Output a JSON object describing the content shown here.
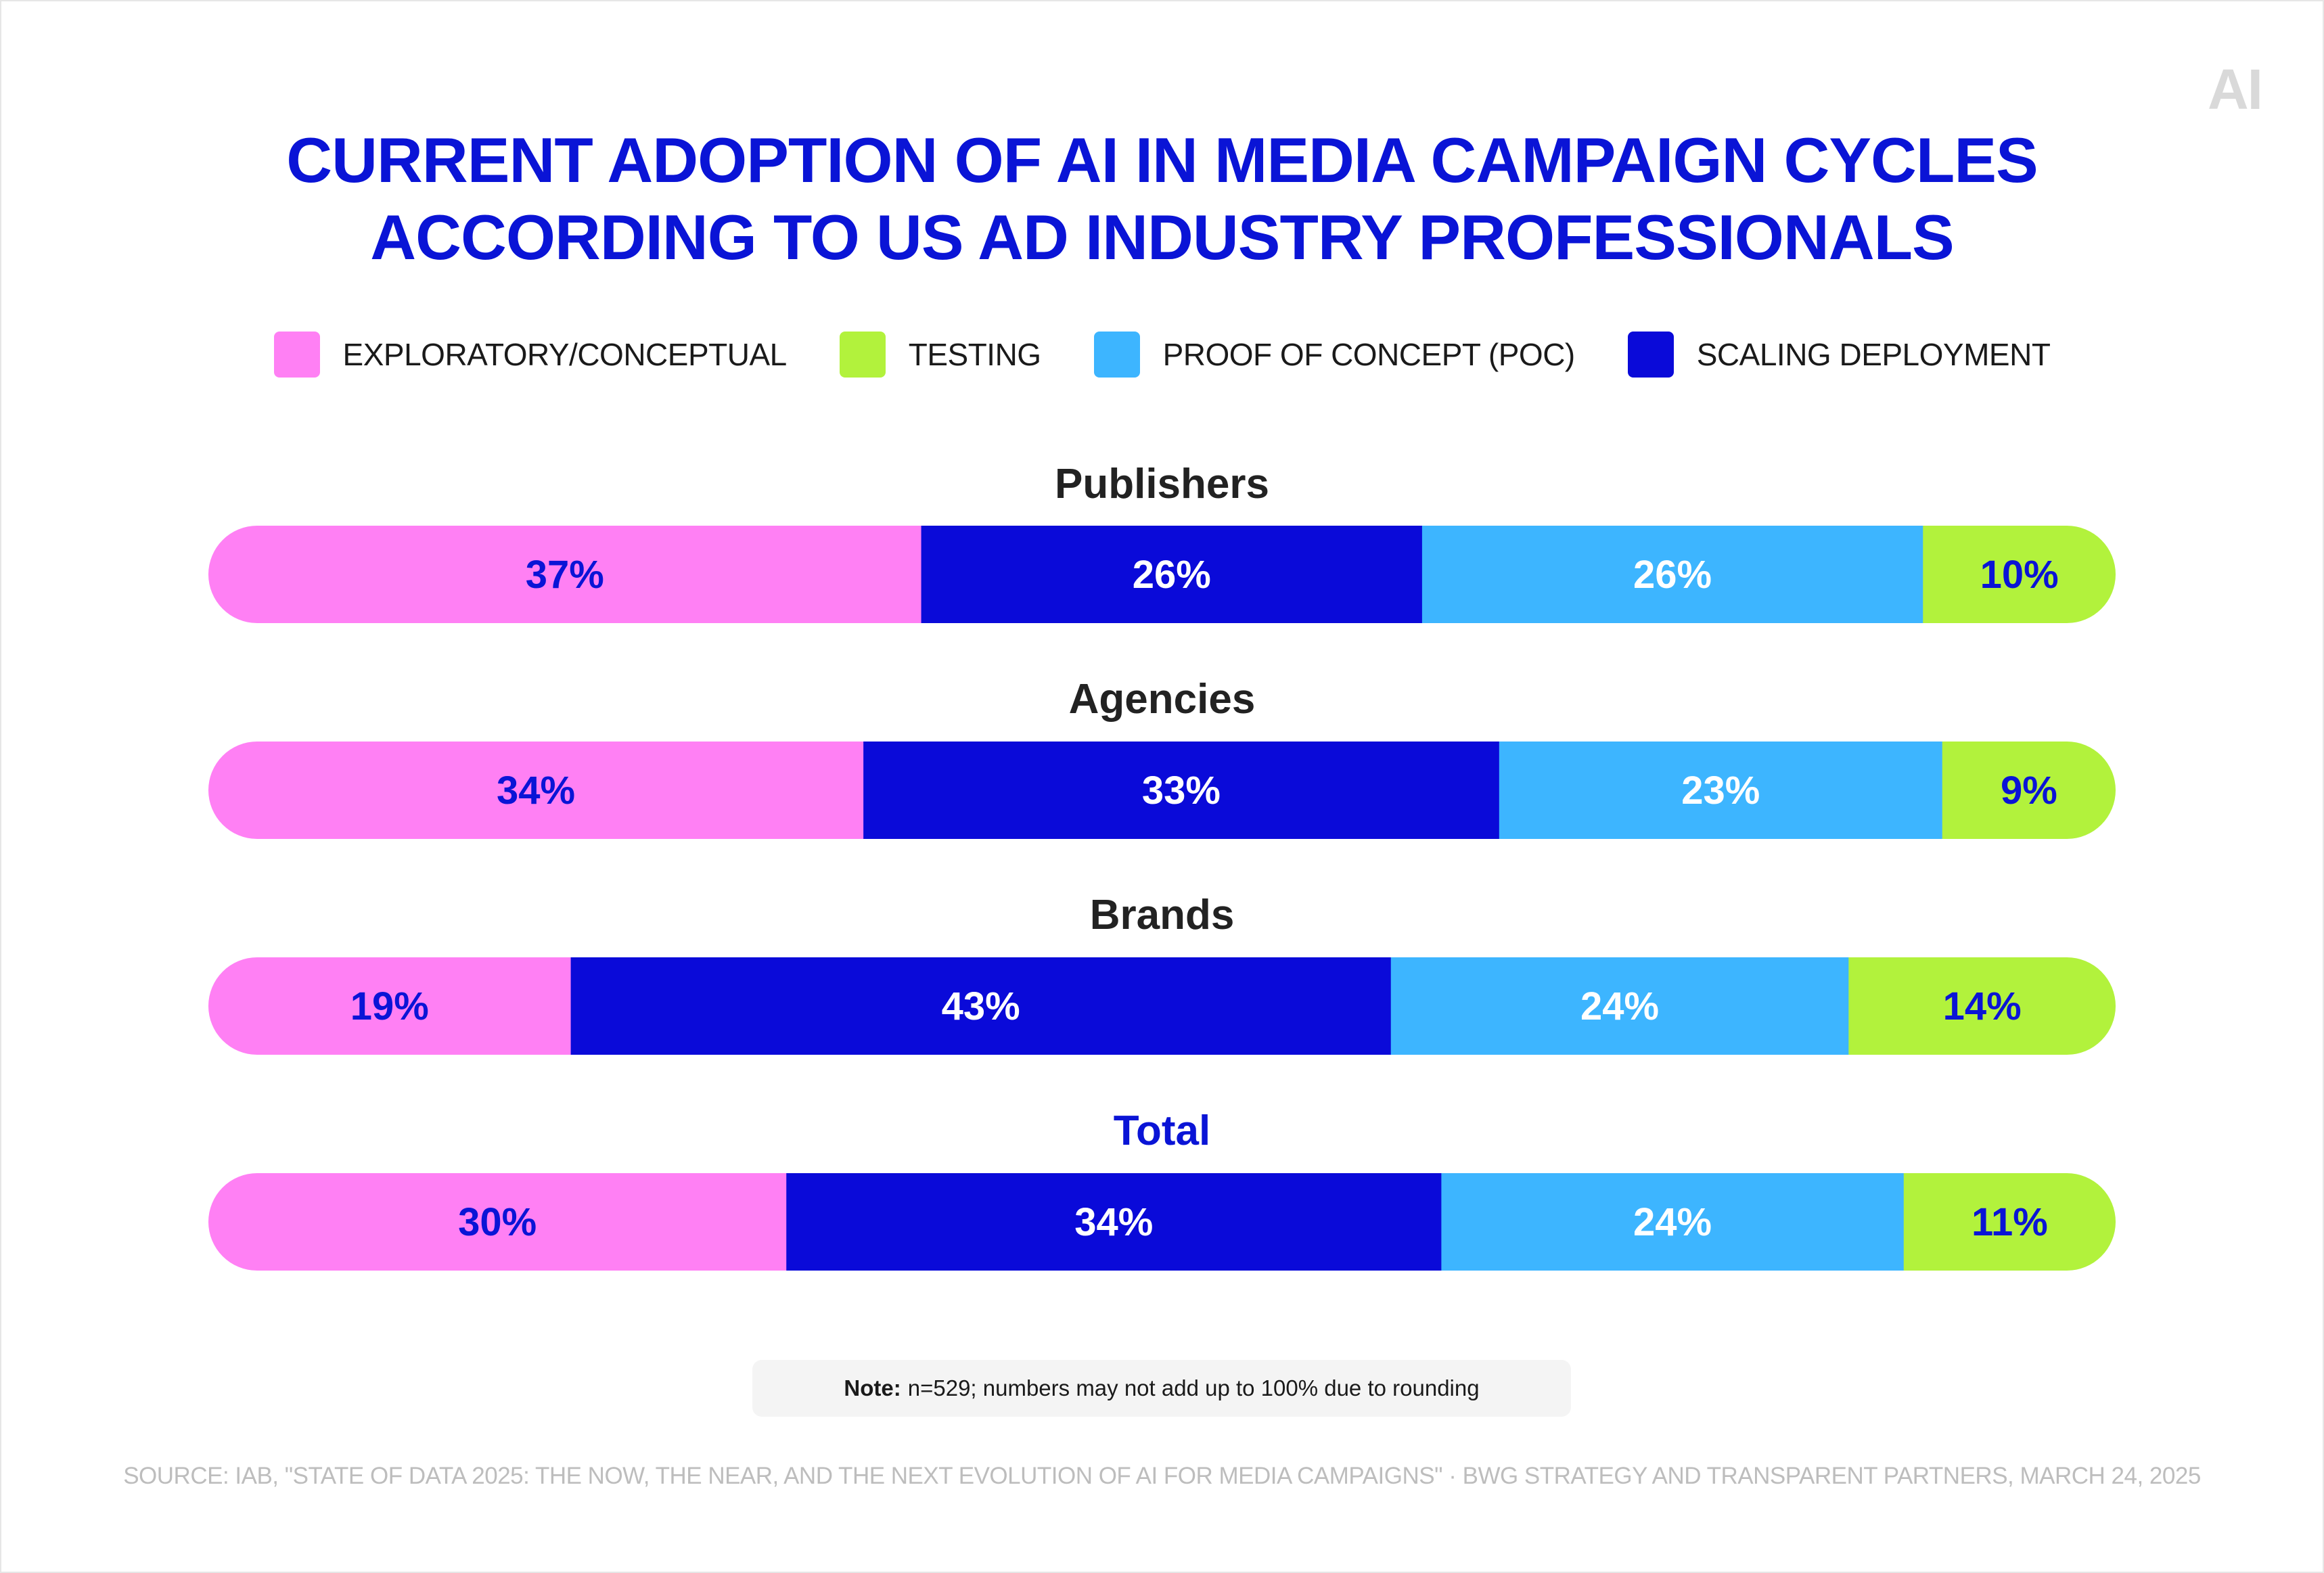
{
  "logo": "AI",
  "title_lines": [
    "CURRENT ADOPTION OF AI IN MEDIA CAMPAIGN CYCLES",
    "ACCORDING TO US AD INDUSTRY PROFESSIONALS"
  ],
  "legend": [
    {
      "label": "EXPLORATORY/CONCEPTUAL",
      "color": "#ff80f4"
    },
    {
      "label": "TESTING",
      "color": "#b2f23c"
    },
    {
      "label": "PROOF OF CONCEPT (POC)",
      "color": "#3db5ff"
    },
    {
      "label": "SCALING DEPLOYMENT",
      "color": "#0a0ad9"
    }
  ],
  "chart_data": {
    "type": "bar",
    "orientation": "horizontal-stacked",
    "categories": [
      "Publishers",
      "Agencies",
      "Brands",
      "Total"
    ],
    "series": [
      {
        "name": "EXPLORATORY/CONCEPTUAL",
        "color": "#ff80f4",
        "label_color": "#0a14d6",
        "values": [
          37,
          34,
          19,
          30
        ],
        "labels": [
          "37%",
          "34%",
          "19%",
          "30%"
        ]
      },
      {
        "name": "SCALING DEPLOYMENT",
        "color": "#0a0ad9",
        "label_color": "#ffffff",
        "values": [
          26,
          33,
          43,
          34
        ],
        "labels": [
          "26%",
          "33%",
          "43%",
          "34%"
        ]
      },
      {
        "name": "PROOF OF CONCEPT (POC)",
        "color": "#3db5ff",
        "label_color": "#ffffff",
        "values": [
          26,
          23,
          24,
          24
        ],
        "labels": [
          "26%",
          "23%",
          "24%",
          "24%"
        ]
      },
      {
        "name": "TESTING",
        "color": "#b2f23c",
        "label_color": "#0a14d6",
        "values": [
          10,
          9,
          14,
          11
        ],
        "labels": [
          "10%",
          "9%",
          "14%",
          "11%"
        ]
      }
    ]
  },
  "note": {
    "bold": "Note:",
    "text": "n=529; numbers may not add up to 100% due to rounding"
  },
  "source": "SOURCE: IAB, \"STATE OF DATA 2025: THE NOW, THE NEAR, AND THE NEXT EVOLUTION OF AI FOR MEDIA CAMPAIGNS\" · BWG STRATEGY AND TRANSPARENT PARTNERS, MARCH 24, 2025"
}
